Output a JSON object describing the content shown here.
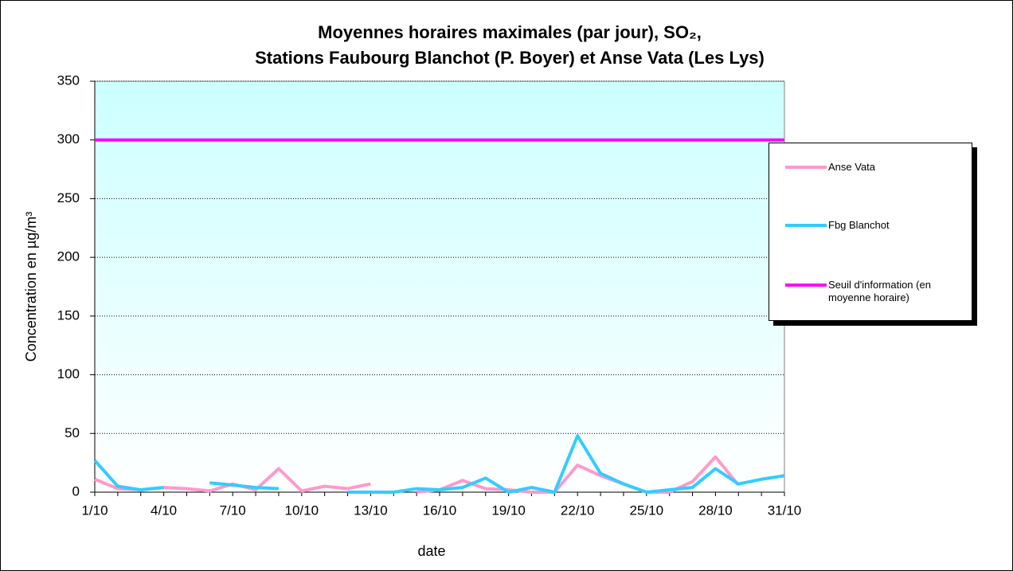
{
  "chart_data": {
    "type": "line",
    "title": [
      "Moyennes horaires maximales (par jour), SO₂,",
      "Stations Faubourg Blanchot (P. Boyer) et Anse Vata (Les Lys)"
    ],
    "x_label": "date",
    "y_label": "Concentration en µg/m³",
    "categories": [
      "1/10",
      null,
      null,
      "4/10",
      null,
      null,
      "7/10",
      null,
      null,
      "10/10",
      null,
      null,
      "13/10",
      null,
      null,
      "16/10",
      null,
      null,
      "19/10",
      null,
      null,
      "22/10",
      null,
      null,
      "25/10",
      null,
      null,
      "28/10",
      null,
      null,
      "31/10"
    ],
    "series": [
      {
        "name": "Anse Vata",
        "color": "#ff99cc",
        "values": [
          11,
          3,
          2,
          4,
          3,
          1,
          7,
          2,
          20,
          1,
          5,
          3,
          7,
          null,
          0,
          2,
          10,
          3,
          2,
          0,
          0,
          23,
          14,
          7,
          0,
          0,
          9,
          30,
          6,
          null,
          null
        ]
      },
      {
        "name": "Fbg Blanchot",
        "color": "#33ccff",
        "values": [
          27,
          5,
          2,
          4,
          null,
          8,
          6,
          4,
          3,
          null,
          null,
          0,
          0,
          0,
          3,
          2,
          4,
          12,
          0,
          4,
          0,
          48,
          16,
          7,
          0,
          2,
          4,
          20,
          7,
          11,
          14
        ]
      },
      {
        "name": "Seuil d'information (en moyenne horaire)",
        "color": "#ff00ff",
        "values": [
          300,
          300,
          300,
          300,
          300,
          300,
          300,
          300,
          300,
          300,
          300,
          300,
          300,
          300,
          300,
          300,
          300,
          300,
          300,
          300,
          300,
          300,
          300,
          300,
          300,
          300,
          300,
          300,
          300,
          300,
          300
        ]
      }
    ],
    "ylim": [
      0,
      350
    ],
    "yticks": [
      0,
      50,
      100,
      150,
      200,
      250,
      300,
      350
    ],
    "grid": true
  }
}
